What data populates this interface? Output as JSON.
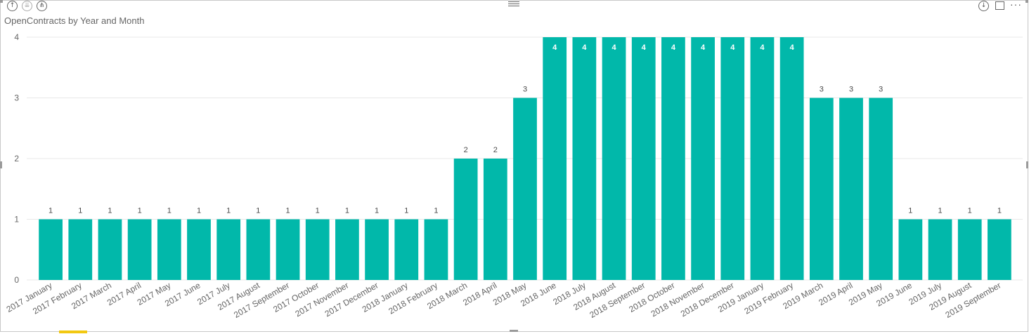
{
  "header": {
    "drill_up_icon": "arrow-up-icon",
    "drill_down_all_icon": "double-arrow-down-icon",
    "expand_icon": "fork-down-icon",
    "focus_icon": "focus-mode-icon",
    "more_icon": "more-options-icon",
    "more_label": "···"
  },
  "colors": {
    "bar": "#01b8aa",
    "grid": "#e8e8e8",
    "axis_text": "#666666",
    "label_text": "#4a4a4a"
  },
  "chart_data": {
    "type": "bar",
    "title": "OpenContracts by Year and Month",
    "xlabel": "",
    "ylabel": "",
    "ylim": [
      0,
      4
    ],
    "yticks": [
      0,
      1,
      2,
      3,
      4
    ],
    "grid": true,
    "categories": [
      "2017 January",
      "2017 February",
      "2017 March",
      "2017 April",
      "2017 May",
      "2017 June",
      "2017 July",
      "2017 August",
      "2017 September",
      "2017 October",
      "2017 November",
      "2017 December",
      "2018 January",
      "2018 February",
      "2018 March",
      "2018 April",
      "2018 May",
      "2018 June",
      "2018 July",
      "2018 August",
      "2018 September",
      "2018 October",
      "2018 November",
      "2018 December",
      "2019 January",
      "2019 February",
      "2019 March",
      "2019 April",
      "2019 May",
      "2019 June",
      "2019 July",
      "2019 August",
      "2019 September"
    ],
    "values": [
      1,
      1,
      1,
      1,
      1,
      1,
      1,
      1,
      1,
      1,
      1,
      1,
      1,
      1,
      2,
      2,
      3,
      4,
      4,
      4,
      4,
      4,
      4,
      4,
      4,
      4,
      3,
      3,
      3,
      1,
      1,
      1,
      1
    ]
  }
}
